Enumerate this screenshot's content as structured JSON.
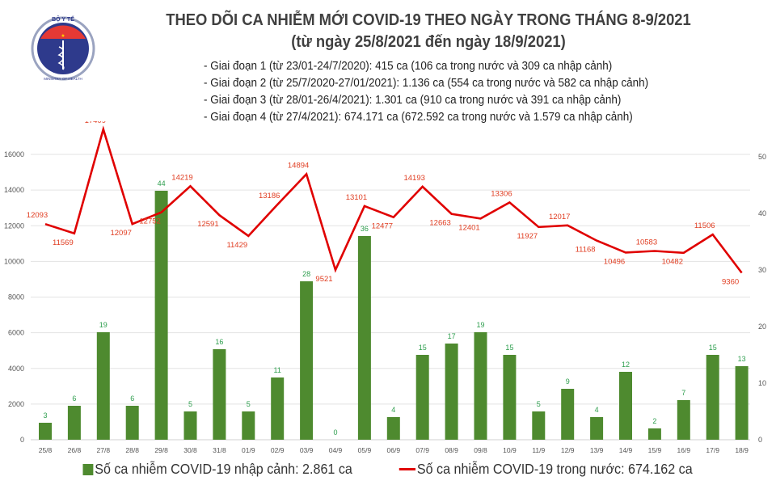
{
  "logo": {
    "text_top": "BỘ Y TẾ",
    "text_bottom": "MINISTRY OF HEALTH"
  },
  "header": {
    "title": "THEO DÕI CA NHIỄM MỚI COVID-19 THEO NGÀY TRONG THÁNG 8-9/2021",
    "subtitle": "(từ ngày 25/8/2021 đến ngày 18/9/2021)",
    "notes": [
      "- Giai đoạn 1 (từ 23/01-24/7/2020): 415 ca (106 ca trong nước và 309 ca nhập cảnh)",
      "- Giai đoạn 2 (từ 25/7/2020-27/01/2021): 1.136 ca (554 ca trong nước và 582 ca nhập cảnh)",
      "- Giai đoạn 3 (từ 28/01-26/4/2021): 1.301 ca (910 ca trong nước và 391 ca nhập cảnh)",
      "- Giai đoạn 4 (từ 27/4/2021): 674.171 ca (672.592 ca trong nước và 1.579 ca nhập cảnh)"
    ]
  },
  "chart_data": {
    "type": "bar+line",
    "categories": [
      "25/8",
      "26/8",
      "27/8",
      "28/8",
      "29/8",
      "30/8",
      "31/8",
      "01/9",
      "02/9",
      "03/9",
      "04/9",
      "05/9",
      "06/9",
      "07/9",
      "08/9",
      "09/8",
      "10/9",
      "11/9",
      "12/9",
      "13/9",
      "14/9",
      "15/9",
      "16/9",
      "17/9",
      "18/9"
    ],
    "series": [
      {
        "name": "Số ca nhiễm COVID-19 nhập cảnh: 2.861 ca",
        "type": "bar",
        "axis": "right",
        "color": "#4e8a2f",
        "values": [
          3,
          6,
          19,
          6,
          44,
          5,
          16,
          5,
          11,
          28,
          0,
          36,
          4,
          15,
          17,
          19,
          15,
          5,
          9,
          4,
          12,
          2,
          7,
          15,
          13
        ]
      },
      {
        "name": "Số ca nhiễm COVID-19 trong nước: 674.162 ca",
        "type": "line",
        "axis": "left",
        "color": "#e00000",
        "values": [
          12093,
          11569,
          17409,
          12097,
          12752,
          14219,
          12591,
          11429,
          13186,
          14894,
          9521,
          13101,
          12477,
          14193,
          12663,
          12401,
          13306,
          11927,
          12017,
          11168,
          10496,
          10583,
          10482,
          11506,
          9360
        ]
      }
    ],
    "left_axis": {
      "ylim": [
        0,
        16000
      ],
      "ticks": [
        0,
        2000,
        4000,
        6000,
        8000,
        10000,
        12000,
        14000,
        16000
      ]
    },
    "right_axis": {
      "ylim": [
        0,
        50
      ],
      "ticks": [
        0,
        10,
        20,
        30,
        40,
        50
      ]
    },
    "grid": true,
    "legend": "bottom",
    "label_colors": {
      "bar": "#2e9e4e",
      "line": "#e03c20"
    }
  }
}
